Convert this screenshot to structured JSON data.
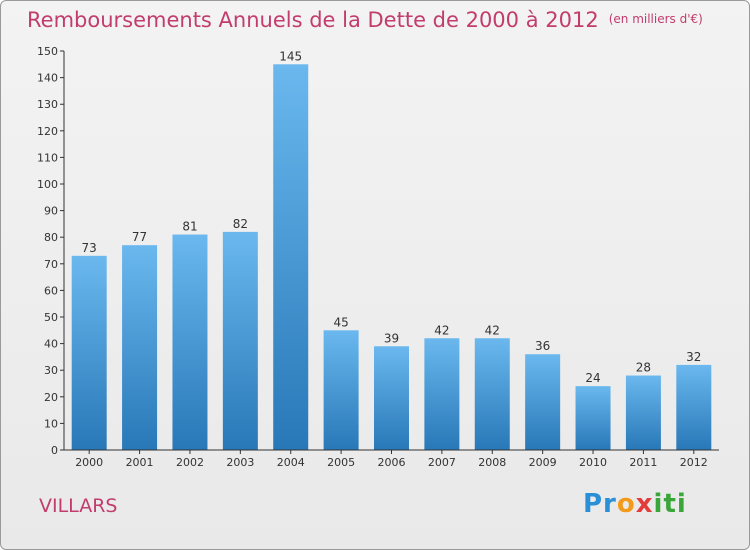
{
  "header": {
    "title": "Remboursements Annuels de la Dette de 2000 à 2012",
    "unit": "(en milliers d'€)"
  },
  "footer": {
    "town": "VILLARS",
    "logo_text": "Proxiti"
  },
  "colors": {
    "title": "#c23c6c",
    "bar_top": "#6ab8ee",
    "bar_bottom": "#2878b8",
    "axis": "#333333"
  },
  "chart_data": {
    "type": "bar",
    "title": "Remboursements Annuels de la Dette de 2000 à 2012",
    "xlabel": "",
    "ylabel": "",
    "categories": [
      "2000",
      "2001",
      "2002",
      "2003",
      "2004",
      "2005",
      "2006",
      "2007",
      "2008",
      "2009",
      "2010",
      "2011",
      "2012"
    ],
    "values": [
      73,
      77,
      81,
      82,
      145,
      45,
      39,
      42,
      42,
      36,
      24,
      28,
      32
    ],
    "ylim": [
      0,
      150
    ],
    "yticks": [
      0,
      10,
      20,
      30,
      40,
      50,
      60,
      70,
      80,
      90,
      100,
      110,
      120,
      130,
      140,
      150
    ],
    "grid": false,
    "data_labels": true
  }
}
